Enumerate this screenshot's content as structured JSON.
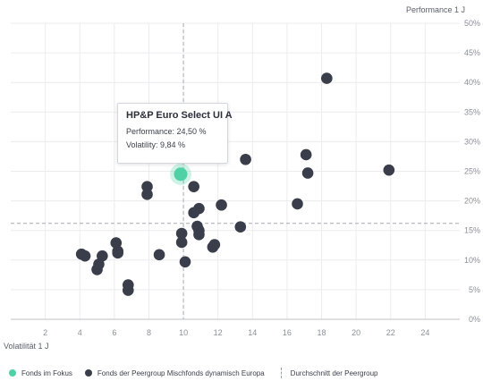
{
  "chart_data": {
    "type": "scatter",
    "xlabel": "Volatilität 1 J",
    "ylabel": "Performance 1 J",
    "xlim": [
      0,
      26
    ],
    "ylim": [
      0,
      50
    ],
    "x_ticks": [
      "2",
      "4",
      "6",
      "8",
      "10",
      "12",
      "14",
      "16",
      "18",
      "20",
      "22",
      "24"
    ],
    "y_ticks": [
      "0%",
      "5%",
      "10%",
      "15%",
      "20%",
      "25%",
      "30%",
      "35%",
      "40%",
      "45%",
      "50%"
    ],
    "grid": true,
    "peer_average": {
      "x": 10.0,
      "y": 16.2
    },
    "focus": {
      "name": "HP&P Euro Select UI A",
      "x": 9.84,
      "y": 24.5,
      "color": "#4fd1a5"
    },
    "series": [
      {
        "color": "#3a3d4a",
        "points": [
          [
            18.3,
            40.7
          ],
          [
            13.6,
            27.0
          ],
          [
            17.1,
            27.8
          ],
          [
            17.2,
            24.7
          ],
          [
            21.9,
            25.2
          ],
          [
            7.9,
            22.4
          ],
          [
            7.9,
            21.1
          ],
          [
            10.6,
            22.4
          ],
          [
            16.6,
            19.5
          ],
          [
            12.2,
            19.3
          ],
          [
            10.9,
            18.7
          ],
          [
            10.6,
            18.0
          ],
          [
            10.8,
            15.7
          ],
          [
            10.9,
            15.0
          ],
          [
            10.9,
            14.3
          ],
          [
            9.9,
            14.5
          ],
          [
            13.3,
            15.6
          ],
          [
            9.9,
            13.0
          ],
          [
            11.7,
            12.2
          ],
          [
            11.8,
            12.6
          ],
          [
            6.1,
            12.9
          ],
          [
            6.2,
            11.2
          ],
          [
            6.2,
            11.5
          ],
          [
            4.1,
            11.0
          ],
          [
            4.3,
            10.7
          ],
          [
            5.3,
            10.7
          ],
          [
            5.1,
            9.3
          ],
          [
            5.0,
            8.4
          ],
          [
            8.6,
            10.9
          ],
          [
            10.1,
            9.7
          ],
          [
            6.8,
            5.8
          ],
          [
            6.8,
            4.9
          ]
        ]
      }
    ],
    "legend": {
      "focus_label": "Fonds im Fokus",
      "peer_label": "Fonds der Peergroup Mischfonds dynamisch Europa",
      "average_label": "Durchschnitt der Peergroup"
    }
  },
  "tooltip": {
    "title": "HP&P Euro Select UI A",
    "performance": "Performance: 24,50 %",
    "volatility": "Volatility: 9,84 %"
  }
}
